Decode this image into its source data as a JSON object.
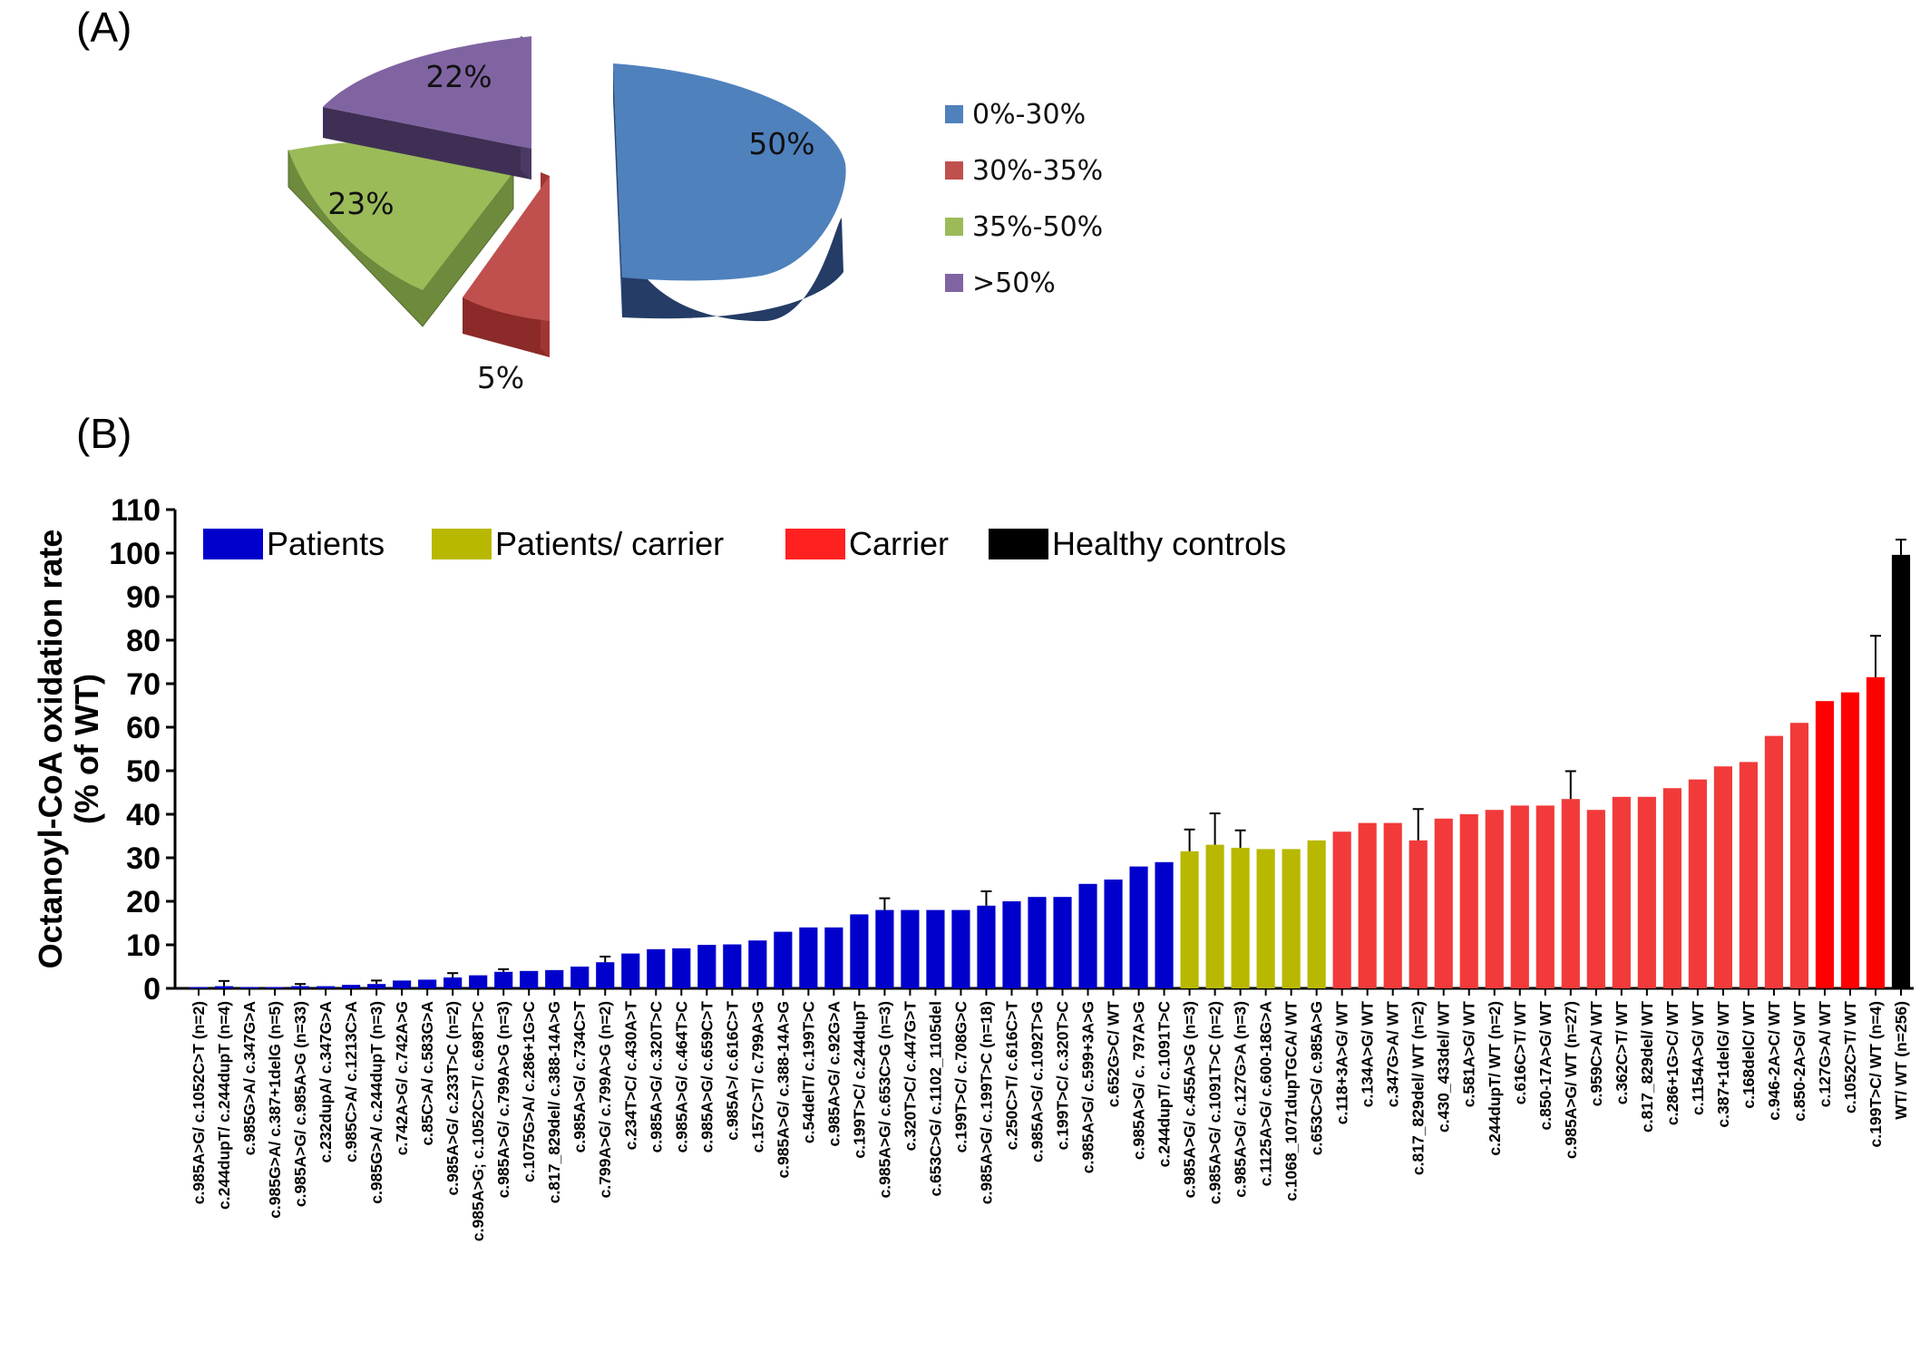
{
  "panel_a": {
    "label": "(A)"
  },
  "panel_b": {
    "label": "(B)"
  },
  "chart_data": [
    {
      "type": "pie",
      "slices": [
        {
          "label": "0%-30%",
          "value": 50,
          "display": "50%",
          "color": "#4f81bd"
        },
        {
          "label": "30%-35%",
          "value": 5,
          "display": "5%",
          "color": "#c0504d"
        },
        {
          "label": "35%-50%",
          "value": 23,
          "display": "23%",
          "color": "#9bbb59"
        },
        {
          "label": ">50%",
          "value": 22,
          "display": "22%",
          "color": "#8064a2"
        }
      ],
      "legend_position": "right",
      "style": "3D exploded"
    },
    {
      "type": "bar",
      "ylabel": "Octanoyl-CoA oxidation rate\n(% of WT)",
      "ylim": [
        0,
        110
      ],
      "yticks": [
        0,
        10,
        20,
        30,
        40,
        50,
        60,
        70,
        80,
        90,
        100,
        110
      ],
      "legend": [
        {
          "name": "Patients",
          "color": "#0000cc"
        },
        {
          "name": "Patients/ carrier",
          "color": "#b8b800"
        },
        {
          "name": "Carrier",
          "color": "#ff2020"
        },
        {
          "name": "Healthy controls",
          "color": "#000000"
        }
      ],
      "legend_position": "top",
      "categories": [
        "c.985A>G/ c.1052C>T (n=2)",
        "c.244dupT/ c.244dupT (n=4)",
        "c.985G>A/ c.347G>A",
        "c.985G>A/ c.387+1delG (n=5)",
        "c.985A>G/ c.985A>G (n=33)",
        "c.232dupA/ c.347G>A",
        "c.985C>A/ c.1213C>A",
        "c.985G>A/ c.244dupT (n=3)",
        "c.742A>G/ c.742A>G",
        "c.85C>A/ c.583G>A",
        "c.985A>G/ c.233T>C (n=2)",
        "c.985A>G; c.1052C>T/ c.698T>C",
        "c.985A>G/ c.799A>G (n=3)",
        "c.1075G>A/ c.286+1G>C",
        "c.817_829del/ c.388-14A>G",
        "c.985A>G/ c.734C>T",
        "c.799A>G/ c.799A>G (n=2)",
        "c.234T>C/ c.430A>T",
        "c.985A>G/ c.320T>C",
        "c.985A>G/ c.464T>C",
        "c.985A>G/ c.659C>T",
        "c.985A>/ c.616C>T",
        "c.157C>T/ c.799A>G",
        "c.985A>G/ c.388-14A>G",
        "c.54delT/ c.199T>C",
        "c.985A>G/ c.92G>A",
        "c.199T>C/ c.244dupT",
        "c.985A>G/ c.653C>G (n=3)",
        "c.320T>C/ c.447G>T",
        "c.653C>G/ c.1102_1105del",
        "c.199T>C/ c.708G>C",
        "c.985A>G/ c.199T>C (n=18)",
        "c.250C>T/ c.616C>T",
        "c.985A>G/ c.1092T>G",
        "c.199T>C/ c.320T>C",
        "c.985A>G/ c.599+3A>G",
        "c.652G>C/ WT",
        "c.985A>G/ c. 797A>G",
        "c.244dupT/ c.1091T>C",
        "c.985A>G/ c.455A>G (n=3)",
        "c.985A>G/ c.1091T>C (n=2)",
        "c.985A>G/ c.127G>A (n=3)",
        "c.1125A>G/ c.600-18G>A",
        "c.1068_1071dupTGCA/ WT",
        "c.653C>G/ c.985A>G",
        "c.118+3A>G/ WT",
        "c.134A>G/ WT",
        "c.347G>A/ WT",
        "c.817_829del/ WT (n=2)",
        "c.430_433del/ WT",
        "c.581A>G/ WT",
        "c.244dupT/ WT (n=2)",
        "c.616C>T/ WT",
        "c.850-17A>G/ WT",
        "c.985A>G/ WT (n=27)",
        "c.959C>A/ WT",
        "c.362C>T/ WT",
        "c.817_829del/ WT",
        "c.286+1G>C/ WT",
        "c.1154A>G/ WT",
        "c.387+1delG/ WT",
        "c.168delC/ WT",
        "c.946-2A>C/ WT",
        "c.850-2A>G/ WT",
        "c.127G>A/ WT",
        "c.1052C>T/ WT",
        "c.199T>C/ WT (n=4)",
        "WT/ WT (n=256)"
      ],
      "values": [
        0.3,
        0.5,
        0.3,
        0.3,
        0.5,
        0.5,
        0.8,
        1,
        1.8,
        2,
        2.5,
        3,
        3.8,
        4,
        4.2,
        5,
        6,
        8,
        9,
        9.2,
        10,
        10.1,
        11,
        13,
        14,
        14,
        17,
        18,
        18,
        18,
        18,
        19,
        20,
        21,
        21,
        24,
        25,
        28,
        29,
        31.5,
        33,
        32.3,
        32,
        32,
        34,
        36,
        38,
        38,
        34,
        39,
        40,
        41,
        42,
        42,
        43.5,
        41,
        44,
        44,
        46,
        48,
        51,
        52,
        58,
        61,
        66,
        68,
        71.5,
        99.6
      ],
      "error_bars": [
        0,
        1.2,
        0,
        0,
        0.5,
        0,
        0,
        0.8,
        0,
        0,
        1,
        0,
        0.6,
        0,
        0,
        0,
        1.3,
        0,
        0,
        0,
        0,
        0,
        0,
        0,
        0,
        0,
        0,
        2.7,
        0,
        0,
        0,
        3.3,
        0,
        0,
        0,
        0,
        0,
        0,
        0,
        5,
        7.2,
        4,
        0,
        0,
        0,
        0,
        0,
        0,
        7.2,
        0,
        0,
        0,
        0,
        0,
        6.4,
        0,
        0,
        0,
        0,
        0,
        0,
        0,
        0,
        0,
        0,
        0,
        9.5,
        3.5
      ],
      "groups": [
        "Patients",
        "Patients",
        "Patients",
        "Patients",
        "Patients",
        "Patients",
        "Patients",
        "Patients",
        "Patients",
        "Patients",
        "Patients",
        "Patients",
        "Patients",
        "Patients",
        "Patients",
        "Patients",
        "Patients",
        "Patients",
        "Patients",
        "Patients",
        "Patients",
        "Patients",
        "Patients",
        "Patients",
        "Patients",
        "Patients",
        "Patients",
        "Patients",
        "Patients",
        "Patients",
        "Patients",
        "Patients",
        "Patients",
        "Patients",
        "Patients",
        "Patients",
        "Patients",
        "Patients",
        "Patients",
        "Patients/ carrier",
        "Patients/ carrier",
        "Patients/ carrier",
        "Patients/ carrier",
        "Patients/ carrier",
        "Patients/ carrier",
        "Carrier",
        "Carrier",
        "Carrier",
        "Carrier",
        "Carrier",
        "Carrier",
        "Carrier",
        "Carrier",
        "Carrier",
        "Carrier",
        "Carrier",
        "Carrier",
        "Carrier",
        "Carrier",
        "Carrier",
        "Carrier",
        "Carrier",
        "Carrier",
        "Carrier",
        "Carrier",
        "Carrier",
        "Carrier",
        "Healthy controls"
      ],
      "grid": false
    }
  ]
}
